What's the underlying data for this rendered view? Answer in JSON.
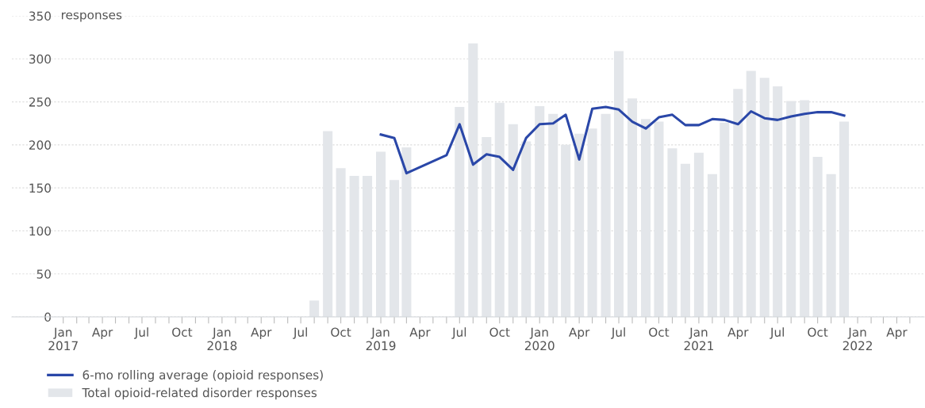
{
  "chart_data": {
    "type": "bar",
    "ylabel": "responses",
    "series": [
      {
        "name": "Total opioid-related disorder responses",
        "color": "#e3e6ea",
        "x": [
          "2018-08",
          "2018-09",
          "2018-10",
          "2018-11",
          "2018-12",
          "2019-01",
          "2019-02",
          "2019-03",
          "2019-07",
          "2019-08",
          "2019-09",
          "2019-10",
          "2019-11",
          "2019-12",
          "2020-01",
          "2020-02",
          "2020-03",
          "2020-04",
          "2020-05",
          "2020-06",
          "2020-07",
          "2020-08",
          "2020-09",
          "2020-10",
          "2020-11",
          "2020-12",
          "2021-01",
          "2021-02",
          "2021-03",
          "2021-04",
          "2021-05",
          "2021-06",
          "2021-07",
          "2021-08",
          "2021-09",
          "2021-10",
          "2021-11",
          "2021-12"
        ],
        "values": [
          19,
          216,
          173,
          164,
          164,
          192,
          159,
          197,
          244,
          318,
          209,
          249,
          224,
          204,
          245,
          236,
          200,
          213,
          219,
          236,
          309,
          254,
          230,
          227,
          196,
          178,
          191,
          166,
          226,
          265,
          286,
          278,
          268,
          251,
          252,
          186,
          166,
          227
        ]
      },
      {
        "name": "6-mo rolling average (opioid responses)",
        "type": "line",
        "color": "#2a47a8",
        "x": [
          "2019-01",
          "2019-02",
          "2019-03",
          "2019-06",
          "2019-07",
          "2019-08",
          "2019-09",
          "2019-10",
          "2019-11",
          "2019-12",
          "2020-01",
          "2020-02",
          "2020-03",
          "2020-04",
          "2020-05",
          "2020-06",
          "2020-07",
          "2020-08",
          "2020-09",
          "2020-10",
          "2020-11",
          "2020-12",
          "2021-01",
          "2021-02",
          "2021-03",
          "2021-04",
          "2021-05",
          "2021-06",
          "2021-07",
          "2021-08",
          "2021-09",
          "2021-10",
          "2021-11",
          "2021-12"
        ],
        "values": [
          212,
          208,
          167,
          188,
          224,
          177,
          189,
          186,
          171,
          208,
          224,
          225,
          235,
          183,
          242,
          244,
          241,
          227,
          219,
          232,
          235,
          223,
          223,
          230,
          229,
          224,
          239,
          231,
          229,
          233,
          236,
          238,
          238,
          234
        ]
      }
    ],
    "xlim": [
      "2016-09-05",
      "2022-06-03"
    ],
    "xticks": [
      {
        "value": "2017-01",
        "label": "Jan\n2017"
      },
      {
        "value": "2017-02",
        "label": null
      },
      {
        "value": "2017-03",
        "label": null
      },
      {
        "value": "2017-04",
        "label": "Apr"
      },
      {
        "value": "2017-05",
        "label": null
      },
      {
        "value": "2017-06",
        "label": null
      },
      {
        "value": "2017-07",
        "label": "Jul"
      },
      {
        "value": "2017-08",
        "label": null
      },
      {
        "value": "2017-09",
        "label": null
      },
      {
        "value": "2017-10",
        "label": "Oct"
      },
      {
        "value": "2017-11",
        "label": null
      },
      {
        "value": "2017-12",
        "label": null
      },
      {
        "value": "2018-01",
        "label": "Jan\n2018"
      },
      {
        "value": "2018-02",
        "label": null
      },
      {
        "value": "2018-03",
        "label": null
      },
      {
        "value": "2018-04",
        "label": "Apr"
      },
      {
        "value": "2018-05",
        "label": null
      },
      {
        "value": "2018-06",
        "label": null
      },
      {
        "value": "2018-07",
        "label": "Jul"
      },
      {
        "value": "2018-08",
        "label": null
      },
      {
        "value": "2018-09",
        "label": null
      },
      {
        "value": "2018-10",
        "label": "Oct"
      },
      {
        "value": "2018-11",
        "label": null
      },
      {
        "value": "2018-12",
        "label": null
      },
      {
        "value": "2019-01",
        "label": "Jan\n2019"
      },
      {
        "value": "2019-02",
        "label": null
      },
      {
        "value": "2019-03",
        "label": null
      },
      {
        "value": "2019-04",
        "label": "Apr"
      },
      {
        "value": "2019-05",
        "label": null
      },
      {
        "value": "2019-06",
        "label": null
      },
      {
        "value": "2019-07",
        "label": "Jul"
      },
      {
        "value": "2019-08",
        "label": null
      },
      {
        "value": "2019-09",
        "label": null
      },
      {
        "value": "2019-10",
        "label": "Oct"
      },
      {
        "value": "2019-11",
        "label": null
      },
      {
        "value": "2019-12",
        "label": null
      },
      {
        "value": "2020-01",
        "label": "Jan\n2020"
      },
      {
        "value": "2020-02",
        "label": null
      },
      {
        "value": "2020-03",
        "label": null
      },
      {
        "value": "2020-04",
        "label": "Apr"
      },
      {
        "value": "2020-05",
        "label": null
      },
      {
        "value": "2020-06",
        "label": null
      },
      {
        "value": "2020-07",
        "label": "Jul"
      },
      {
        "value": "2020-08",
        "label": null
      },
      {
        "value": "2020-09",
        "label": null
      },
      {
        "value": "2020-10",
        "label": "Oct"
      },
      {
        "value": "2020-11",
        "label": null
      },
      {
        "value": "2020-12",
        "label": null
      },
      {
        "value": "2021-01",
        "label": "Jan\n2021"
      },
      {
        "value": "2021-02",
        "label": null
      },
      {
        "value": "2021-03",
        "label": null
      },
      {
        "value": "2021-04",
        "label": "Apr"
      },
      {
        "value": "2021-05",
        "label": null
      },
      {
        "value": "2021-06",
        "label": null
      },
      {
        "value": "2021-07",
        "label": "Jul"
      },
      {
        "value": "2021-08",
        "label": null
      },
      {
        "value": "2021-09",
        "label": null
      },
      {
        "value": "2021-10",
        "label": "Oct"
      },
      {
        "value": "2021-11",
        "label": null
      },
      {
        "value": "2021-12",
        "label": null
      },
      {
        "value": "2022-01",
        "label": "Jan\n2022"
      },
      {
        "value": "2022-02",
        "label": null
      },
      {
        "value": "2022-03",
        "label": null
      },
      {
        "value": "2022-04",
        "label": "Apr"
      },
      {
        "value": "2022-05",
        "label": null
      }
    ],
    "ylim": [
      0,
      350
    ],
    "yticks": [
      0,
      50,
      100,
      150,
      200,
      250,
      300,
      350
    ],
    "grid": "y",
    "legend": "bottom left",
    "line_style": "solid",
    "marker": "none"
  }
}
